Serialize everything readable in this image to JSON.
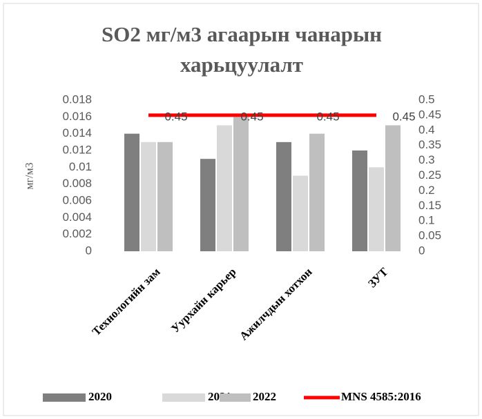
{
  "chart_data": {
    "type": "bar",
    "title": "SO2 мг/м3 агаарын чанарын харьцуулалт",
    "y_label": "мг/м3",
    "categories": [
      "Технологийн зам",
      "Уурхайн карьер",
      "Ажилчдын хотхон",
      "ЗУТ"
    ],
    "series": [
      {
        "name": "2020",
        "color": "#7f7f7f",
        "values": [
          0.014,
          0.011,
          0.013,
          0.012
        ]
      },
      {
        "name": "2021",
        "color": "#d9d9d9",
        "values": [
          0.013,
          0.015,
          0.009,
          0.01
        ]
      },
      {
        "name": "2022",
        "color": "#bfbfbf",
        "values": [
          0.013,
          0.016,
          0.014,
          0.015
        ]
      },
      {
        "name": "MNS 4585:2016",
        "color": "#ff0000",
        "type": "line",
        "axis": "y2",
        "values": [
          0.45,
          0.45,
          0.45,
          0.45
        ],
        "value_labels": [
          "0.45",
          "0.45",
          "0.45",
          "0.45"
        ]
      }
    ],
    "ylim": [
      0,
      0.018
    ],
    "yticks": [
      0,
      0.002,
      0.004,
      0.006,
      0.008,
      0.01,
      0.012,
      0.014,
      0.016,
      0.018
    ],
    "y2lim": [
      0,
      0.5
    ],
    "y2ticks": [
      0,
      0.05,
      0.1,
      0.15,
      0.2,
      0.25,
      0.3,
      0.35,
      0.4,
      0.45,
      0.5
    ],
    "legend": "bottom"
  }
}
